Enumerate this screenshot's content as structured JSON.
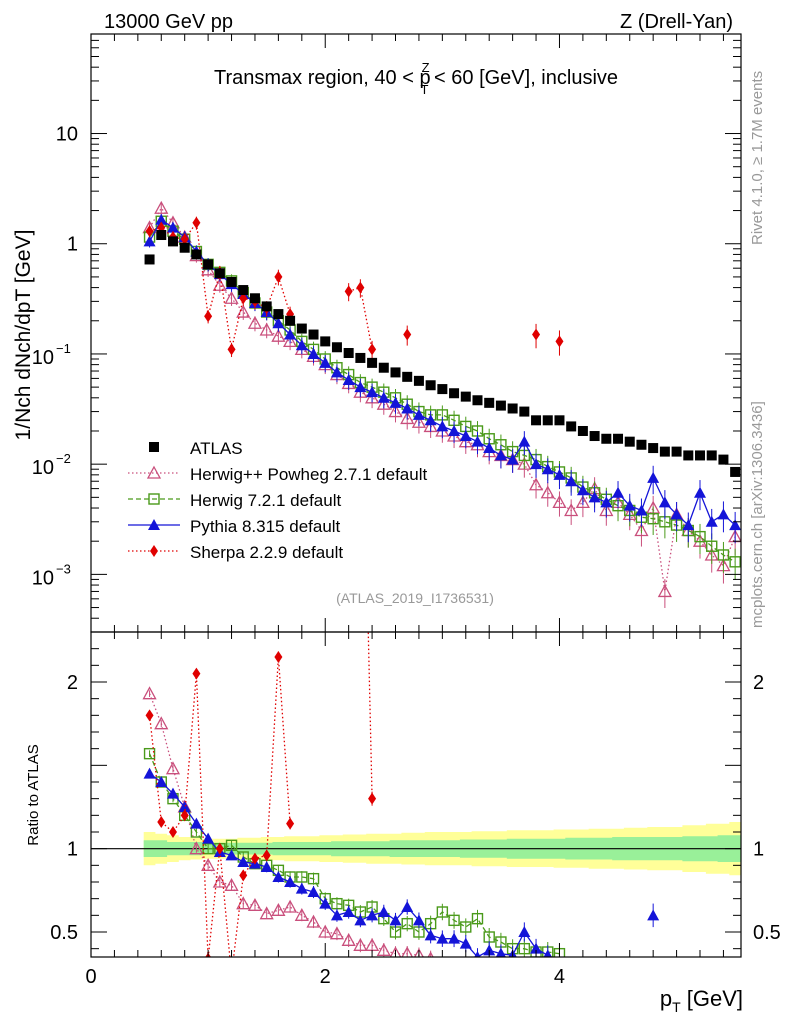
{
  "header": {
    "left": "13000 GeV pp",
    "right": "Z (Drell-Yan)"
  },
  "side_labels": {
    "rivet": "Rivet 4.1.0, ≥ 1.7M events",
    "mcplots": "mcplots.cern.ch [arXiv:1306.3436]"
  },
  "watermark": "(ATLAS_2019_I1736531)",
  "chart_data": {
    "type": "line",
    "title": "Transmax region, 40 < pTZ < 60 [GeV], inclusive",
    "title_parts": {
      "pre": "Transmax region, 40 < p",
      "sup": "Z",
      "sub": "T",
      "post": " < 60 [GeV], inclusive"
    },
    "xlabel": "pT [GeV]",
    "xlabel_parts": {
      "main": "p",
      "sub": "T",
      "post": " [GeV]"
    },
    "ylabel": "1/Nch dNch/dpT [GeV]",
    "ylabel_ratio": "Ratio to ATLAS",
    "xlim": [
      0,
      5.55
    ],
    "ylim_main": [
      0.0003,
      80
    ],
    "ylim_ratio": [
      0.35,
      2.3
    ],
    "yscale_main": "log",
    "x_ticks": [
      "0",
      "2",
      "4"
    ],
    "main_ticks": [
      {
        "value": 10,
        "label": "10"
      },
      {
        "value": 1,
        "label": "1"
      },
      {
        "value": 0.1,
        "base": "10",
        "exp": "−1"
      },
      {
        "value": 0.01,
        "base": "10",
        "exp": "−2"
      },
      {
        "value": 0.001,
        "base": "10",
        "exp": "−3"
      }
    ],
    "ratio_ticks": [
      {
        "value": 2,
        "label": "2"
      },
      {
        "value": 1,
        "label": "1"
      },
      {
        "value": 0.5,
        "label": "0.5"
      }
    ],
    "x": [
      0.5,
      0.6,
      0.7,
      0.8,
      0.9,
      1.0,
      1.1,
      1.2,
      1.3,
      1.4,
      1.5,
      1.6,
      1.7,
      1.8,
      1.9,
      2.0,
      2.1,
      2.2,
      2.3,
      2.4,
      2.5,
      2.6,
      2.7,
      2.8,
      2.9,
      3.0,
      3.1,
      3.2,
      3.3,
      3.4,
      3.5,
      3.6,
      3.7,
      3.8,
      3.9,
      4.0,
      4.1,
      4.2,
      4.3,
      4.4,
      4.5,
      4.6,
      4.7,
      4.8,
      4.9,
      5.0,
      5.1,
      5.2,
      5.3,
      5.4,
      5.5
    ],
    "band_inner": [
      0.05,
      0.05,
      0.04,
      0.04,
      0.04,
      0.035,
      0.035,
      0.035,
      0.035,
      0.035,
      0.035,
      0.04,
      0.04,
      0.04,
      0.04,
      0.04,
      0.045,
      0.045,
      0.045,
      0.045,
      0.045,
      0.05,
      0.05,
      0.05,
      0.05,
      0.05,
      0.05,
      0.055,
      0.055,
      0.055,
      0.055,
      0.06,
      0.06,
      0.06,
      0.06,
      0.06,
      0.065,
      0.065,
      0.065,
      0.065,
      0.07,
      0.07,
      0.07,
      0.07,
      0.07,
      0.07,
      0.075,
      0.075,
      0.075,
      0.08,
      0.08
    ],
    "band_outer": [
      0.1,
      0.09,
      0.08,
      0.07,
      0.065,
      0.06,
      0.06,
      0.06,
      0.065,
      0.065,
      0.07,
      0.07,
      0.075,
      0.075,
      0.075,
      0.08,
      0.08,
      0.085,
      0.085,
      0.09,
      0.09,
      0.09,
      0.095,
      0.095,
      0.1,
      0.1,
      0.1,
      0.1,
      0.105,
      0.105,
      0.105,
      0.11,
      0.11,
      0.11,
      0.11,
      0.115,
      0.115,
      0.115,
      0.12,
      0.12,
      0.12,
      0.125,
      0.125,
      0.13,
      0.13,
      0.13,
      0.14,
      0.14,
      0.15,
      0.15,
      0.16
    ],
    "series": [
      {
        "name": "ATLAS",
        "color": "#000000",
        "marker": "square-filled",
        "linestyle": "none",
        "values": [
          0.72,
          1.2,
          1.05,
          0.92,
          0.8,
          0.65,
          0.54,
          0.45,
          0.38,
          0.32,
          0.27,
          0.23,
          0.2,
          0.17,
          0.15,
          0.13,
          0.115,
          0.102,
          0.092,
          0.083,
          0.075,
          0.068,
          0.062,
          0.057,
          0.052,
          0.048,
          0.044,
          0.041,
          0.038,
          0.036,
          0.034,
          0.032,
          0.03,
          0.025,
          0.025,
          0.025,
          0.022,
          0.02,
          0.018,
          0.017,
          0.017,
          0.016,
          0.015,
          0.014,
          0.013,
          0.013,
          0.012,
          0.012,
          0.012,
          0.011,
          0.0085
        ]
      },
      {
        "name": "Herwig++ Powheg 2.7.1 default",
        "color": "#c94f7c",
        "marker": "triangle-open",
        "linestyle": "dotted",
        "values": [
          1.4,
          2.1,
          1.55,
          1.15,
          0.78,
          0.58,
          0.42,
          0.32,
          0.24,
          0.19,
          0.165,
          0.145,
          0.13,
          0.11,
          0.095,
          0.08,
          0.065,
          0.054,
          0.045,
          0.04,
          0.035,
          0.03,
          0.026,
          0.024,
          0.022,
          0.02,
          0.018,
          0.016,
          0.015,
          0.013,
          0.012,
          0.011,
          0.01,
          0.0065,
          0.0055,
          0.0045,
          0.0038,
          0.0045,
          0.006,
          0.0038,
          0.0045,
          0.0035,
          0.0025,
          0.004,
          0.0007,
          0.0035,
          0.0025,
          0.002,
          0.0015,
          0.0012,
          0.0022
        ]
      },
      {
        "name": "Herwig 7.2.1 default",
        "color": "#4a9a1a",
        "marker": "square-open",
        "linestyle": "dashed",
        "values": [
          1.15,
          1.6,
          1.3,
          1.1,
          0.85,
          0.65,
          0.55,
          0.46,
          0.36,
          0.29,
          0.24,
          0.2,
          0.165,
          0.13,
          0.11,
          0.09,
          0.075,
          0.065,
          0.055,
          0.05,
          0.045,
          0.04,
          0.035,
          0.03,
          0.028,
          0.028,
          0.025,
          0.022,
          0.02,
          0.017,
          0.015,
          0.013,
          0.012,
          0.011,
          0.0095,
          0.0085,
          0.0075,
          0.0062,
          0.0055,
          0.0048,
          0.0042,
          0.0038,
          0.0033,
          0.0032,
          0.003,
          0.0028,
          0.0025,
          0.0022,
          0.0018,
          0.0015,
          0.0013
        ]
      },
      {
        "name": "Pythia 8.315 default",
        "color": "#1414d8",
        "marker": "triangle-filled",
        "linestyle": "solid",
        "values": [
          1.05,
          1.65,
          1.4,
          1.15,
          0.85,
          0.65,
          0.53,
          0.43,
          0.35,
          0.29,
          0.24,
          0.19,
          0.15,
          0.12,
          0.1,
          0.083,
          0.068,
          0.058,
          0.05,
          0.045,
          0.04,
          0.036,
          0.032,
          0.028,
          0.025,
          0.022,
          0.02,
          0.018,
          0.016,
          0.014,
          0.012,
          0.011,
          0.016,
          0.01,
          0.009,
          0.008,
          0.007,
          0.0058,
          0.005,
          0.0045,
          0.0055,
          0.0042,
          0.0038,
          0.0075,
          0.0045,
          0.0035,
          0.0028,
          0.0055,
          0.003,
          0.0035,
          0.0028
        ]
      },
      {
        "name": "Sherpa 2.2.9 default",
        "color": "#e00000",
        "marker": "diamond-filled",
        "linestyle": "dotted",
        "values": [
          1.3,
          1.4,
          1.15,
          1.1,
          1.55,
          0.22,
          0.55,
          0.11,
          0.32,
          0.3,
          0.26,
          0.5,
          0.23,
          null,
          null,
          null,
          null,
          0.37,
          0.4,
          0.11,
          null,
          null,
          0.15,
          null,
          null,
          null,
          null,
          null,
          null,
          null,
          null,
          null,
          null,
          0.15,
          null,
          0.13,
          null,
          null,
          null,
          null,
          null,
          null,
          null,
          null,
          null,
          null,
          null,
          null,
          null,
          null,
          null
        ]
      }
    ],
    "ratio_series": [
      {
        "name": "Herwig++ Powheg 2.7.1 default",
        "values": [
          1.93,
          1.75,
          1.48,
          1.25,
          1.0,
          0.9,
          0.8,
          0.78,
          0.67,
          0.66,
          0.61,
          0.63,
          0.65,
          0.6,
          0.56,
          0.5,
          0.49,
          0.45,
          0.42,
          0.42,
          0.39,
          0.37,
          0.37,
          0.36,
          0.34,
          null,
          null,
          null,
          null,
          null,
          null,
          null,
          null,
          null,
          null,
          null,
          null,
          null,
          null,
          null,
          null,
          null,
          null,
          null,
          null,
          null,
          null,
          null,
          null,
          null,
          null
        ]
      },
      {
        "name": "Herwig 7.2.1 default",
        "values": [
          1.57,
          1.4,
          1.3,
          1.2,
          1.1,
          1.0,
          1.0,
          1.02,
          0.95,
          0.91,
          0.9,
          0.87,
          0.83,
          0.83,
          0.82,
          0.7,
          0.67,
          0.66,
          0.62,
          0.65,
          0.58,
          0.5,
          0.55,
          0.5,
          0.55,
          0.62,
          0.57,
          0.53,
          0.58,
          0.47,
          0.44,
          0.4,
          0.4,
          0.38,
          0.38,
          0.37,
          null,
          null,
          null,
          null,
          null,
          null,
          null,
          null,
          null,
          null,
          null,
          null,
          null,
          null,
          null
        ]
      },
      {
        "name": "Pythia 8.315 default",
        "values": [
          1.45,
          1.4,
          1.33,
          1.25,
          1.15,
          1.06,
          0.98,
          0.96,
          0.92,
          0.91,
          0.89,
          0.83,
          0.8,
          0.76,
          0.74,
          0.67,
          0.6,
          0.62,
          0.57,
          0.6,
          0.62,
          0.57,
          0.65,
          0.57,
          0.48,
          0.46,
          0.46,
          0.43,
          0.35,
          0.39,
          0.37,
          0.36,
          0.5,
          0.4,
          0.36,
          0.3,
          null,
          null,
          null,
          null,
          null,
          null,
          null,
          0.6,
          null,
          null,
          null,
          null,
          null,
          null,
          null
        ]
      },
      {
        "name": "Sherpa 2.2.9 default",
        "values": [
          1.8,
          1.16,
          1.1,
          1.2,
          2.05,
          0.34,
          1.0,
          0.24,
          0.84,
          0.94,
          0.96,
          2.15,
          1.15,
          null,
          null,
          null,
          null,
          3.6,
          4.35,
          1.3,
          null,
          null,
          2.35,
          null,
          null,
          null,
          null,
          null,
          null,
          null,
          null,
          null,
          null,
          null,
          null,
          null,
          null,
          null,
          null,
          null,
          null,
          null,
          null,
          null,
          null,
          null,
          null,
          null,
          null,
          null,
          null
        ]
      }
    ]
  }
}
